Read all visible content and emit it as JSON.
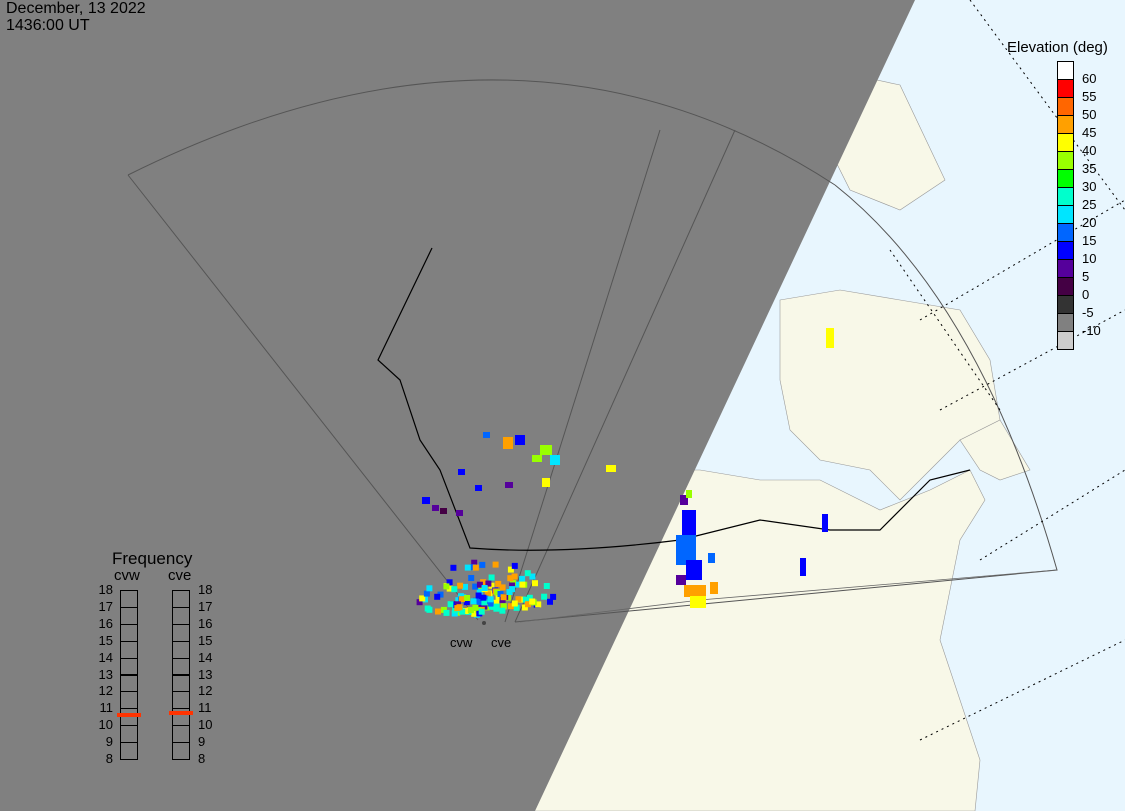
{
  "header": {
    "date": "December, 13 2022",
    "time": "1436:00 UT"
  },
  "legend": {
    "title": "Elevation (deg)",
    "top_color": "#ffffff",
    "bins": [
      {
        "label": "60",
        "color": "#ff0000"
      },
      {
        "label": "55",
        "color": "#ff6600"
      },
      {
        "label": "50",
        "color": "#ffa000"
      },
      {
        "label": "45",
        "color": "#ffff00"
      },
      {
        "label": "40",
        "color": "#99ff00"
      },
      {
        "label": "35",
        "color": "#00ff00"
      },
      {
        "label": "30",
        "color": "#00ffcc"
      },
      {
        "label": "25",
        "color": "#00e5ff"
      },
      {
        "label": "20",
        "color": "#0066ff"
      },
      {
        "label": "15",
        "color": "#0000ff"
      },
      {
        "label": "10",
        "color": "#55009b"
      },
      {
        "label": "5",
        "color": "#440044"
      },
      {
        "label": "0",
        "color": "#333333"
      },
      {
        "label": "-5",
        "color": "#808080"
      },
      {
        "label": "-10",
        "color": "#cccccc"
      }
    ]
  },
  "frequency": {
    "title": "Frequency",
    "scale": [
      "18",
      "17",
      "16",
      "15",
      "14",
      "13",
      "12",
      "11",
      "10",
      "9",
      "8"
    ],
    "radars": [
      {
        "name": "cvw",
        "value_mhz": 10.6
      },
      {
        "name": "cve",
        "value_mhz": 10.7
      }
    ],
    "marker_color": "#ff3300"
  },
  "sites": [
    "cvw",
    "cve"
  ],
  "colors": {
    "night": "#808080",
    "sea": "#e8f6fe",
    "land": "#f8f8e8"
  }
}
